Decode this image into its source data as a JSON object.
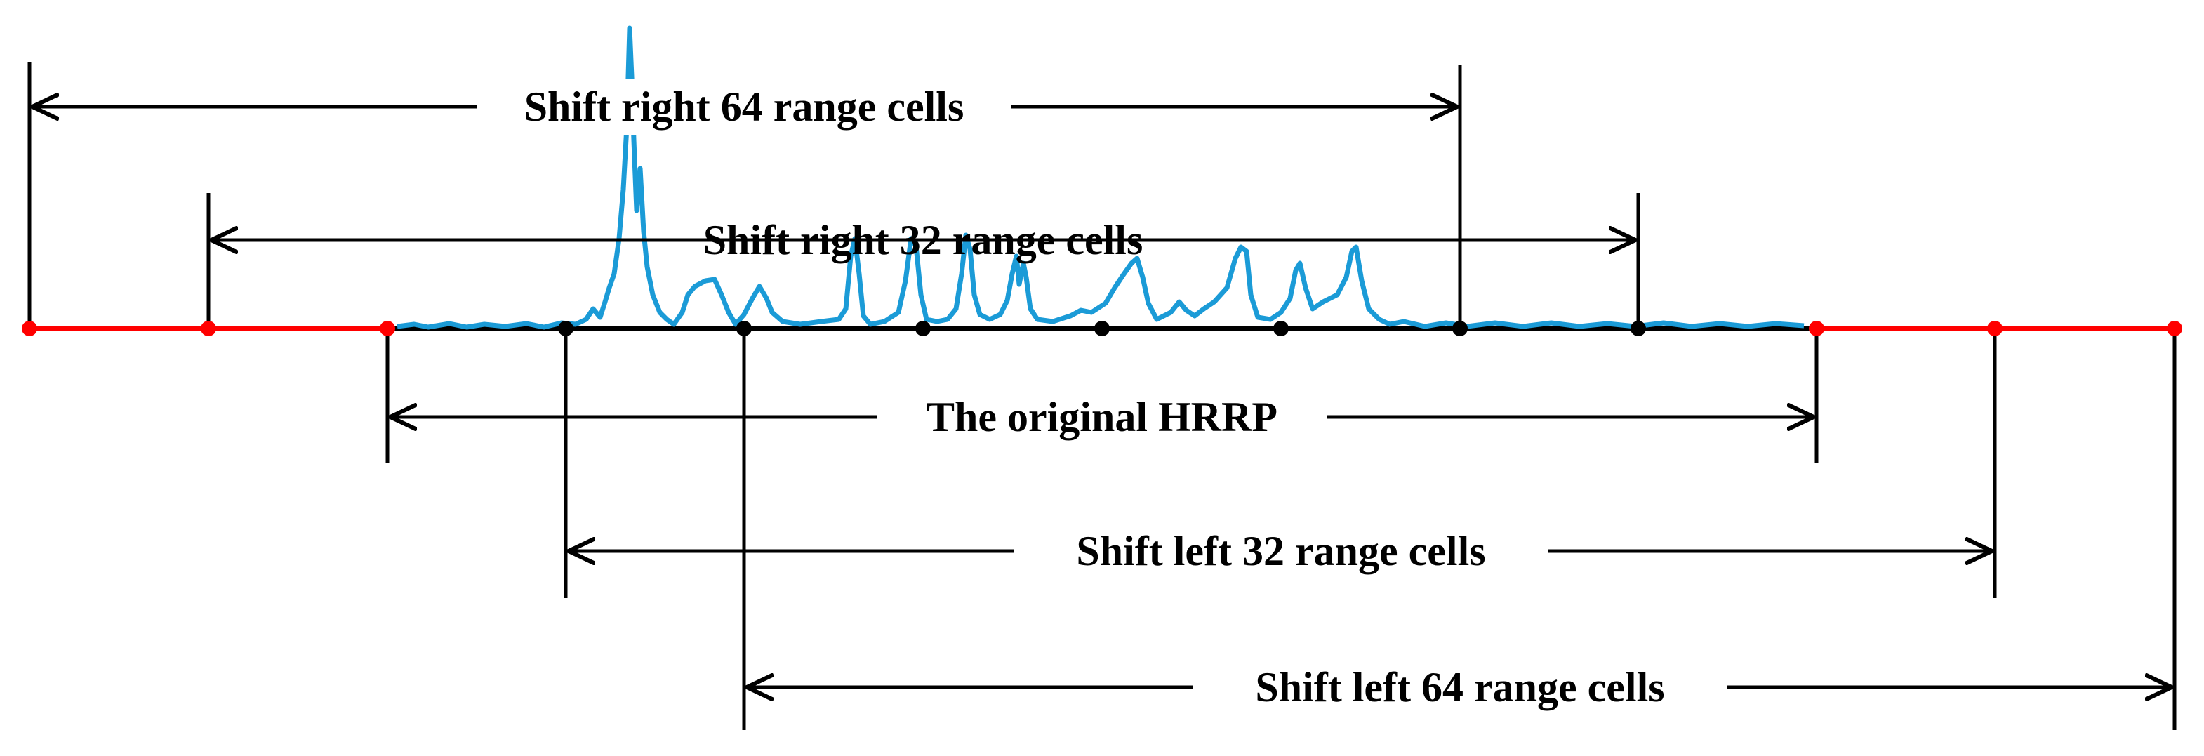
{
  "colors": {
    "axis_red": "#ff0000",
    "axis_black": "#000000",
    "signal": "#1b9bd7",
    "dot_red": "#ff0000",
    "dot_black": "#000000",
    "text": "#000000"
  },
  "labels": {
    "shift_right_64": "Shift right 64 range cells",
    "shift_right_32": "Shift right 32 range cells",
    "original": "The original HRRP",
    "shift_left_32": "Shift left 32 range cells",
    "shift_left_64": "Shift left 64 range cells"
  }
}
